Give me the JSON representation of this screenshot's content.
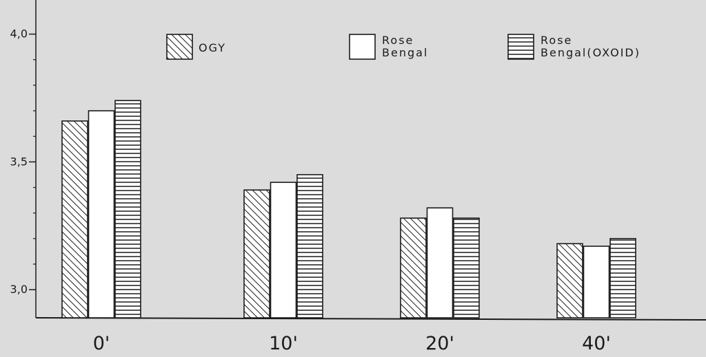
{
  "chart_data": {
    "type": "bar",
    "title": "",
    "xlabel": "",
    "ylabel": "",
    "categories": [
      "0'",
      "10'",
      "20'",
      "40'"
    ],
    "series": [
      {
        "name": "OGY",
        "values": [
          3.66,
          3.39,
          3.28,
          3.18
        ],
        "pattern": "diagonal-hatch"
      },
      {
        "name": "Rose Bengal",
        "values": [
          3.7,
          3.42,
          3.32,
          3.17
        ],
        "pattern": "blank"
      },
      {
        "name": "Rose Bengal(OXOID)",
        "values": [
          3.74,
          3.45,
          3.28,
          3.2
        ],
        "pattern": "horizontal-hatch"
      }
    ],
    "y_ticks": [
      {
        "value": 3.0,
        "label": "3,0"
      },
      {
        "value": 3.5,
        "label": "3,5"
      },
      {
        "value": 4.0,
        "label": "4,0"
      }
    ],
    "ylim": [
      2.89,
      4.12
    ],
    "grid": false,
    "legend_position": "top",
    "colors": {
      "background": "#dcdcdc",
      "ink": "#1a1a1a",
      "bar_fill": "#ffffff"
    }
  }
}
